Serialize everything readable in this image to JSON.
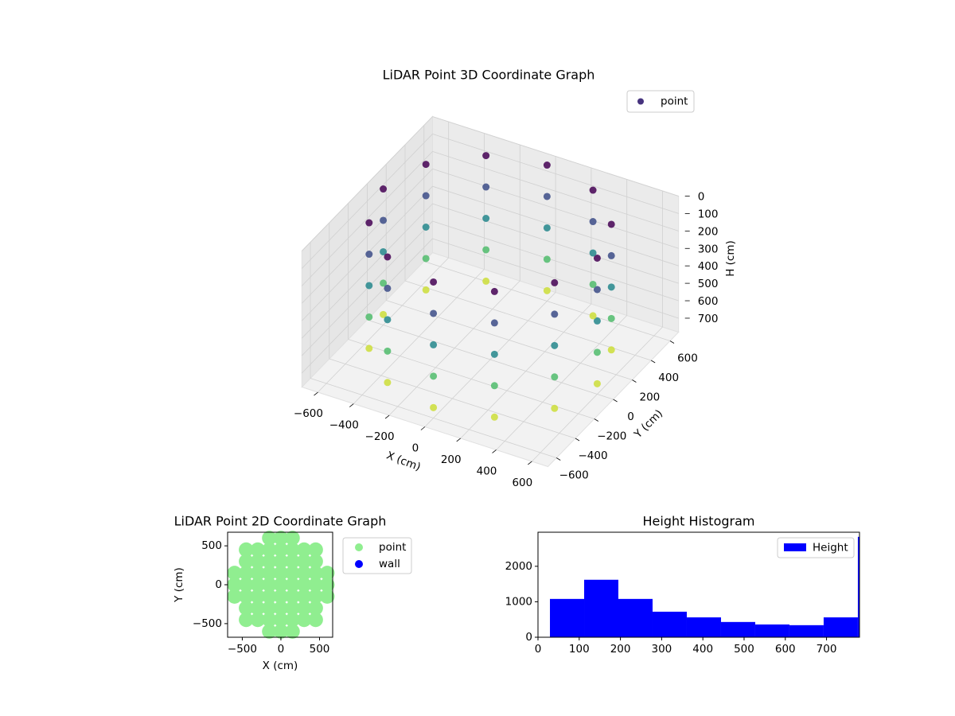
{
  "chart_data": [
    {
      "type": "scatter3d",
      "title": "LiDAR Point 3D Coordinate Graph",
      "xlabel": "X (cm)",
      "ylabel": "Y (cm)",
      "zlabel": "H (cm)",
      "xlim": [
        -690,
        690
      ],
      "ylim": [
        -690,
        690
      ],
      "zlim": [
        780,
        0
      ],
      "xticks": [
        {
          "value": -600,
          "label": "−600"
        },
        {
          "value": -400,
          "label": "−400"
        },
        {
          "value": -200,
          "label": "−200"
        },
        0,
        200,
        400,
        600
      ],
      "yticks": [
        {
          "value": -600,
          "label": "−600"
        },
        {
          "value": -400,
          "label": "−400"
        },
        {
          "value": -200,
          "label": "−200"
        },
        0,
        200,
        400,
        600
      ],
      "zticks": [
        0,
        100,
        200,
        300,
        400,
        500,
        600,
        700
      ],
      "grid": true,
      "cmap": "viridis",
      "legend": "upper right",
      "series": [
        {
          "name": "point",
          "color": "#46337e",
          "x": [
            600,
            600,
            600,
            600,
            600,
            520,
            520,
            520,
            520,
            520,
            300,
            300,
            300,
            300,
            300,
            0,
            0,
            0,
            0,
            0,
            -300,
            -300,
            -300,
            -300,
            -300,
            -520,
            -520,
            -520,
            -520,
            -520,
            -600,
            -600,
            -600,
            -600,
            -600,
            -520,
            -520,
            -520,
            -520,
            -520,
            -300,
            -300,
            -300,
            -300,
            -300,
            0,
            0,
            0,
            0,
            0,
            300,
            300,
            300,
            300,
            300,
            520,
            520,
            520,
            520,
            520
          ],
          "y": [
            0,
            0,
            0,
            0,
            0,
            300,
            300,
            300,
            300,
            300,
            520,
            520,
            520,
            520,
            520,
            600,
            600,
            600,
            600,
            600,
            520,
            520,
            520,
            520,
            520,
            300,
            300,
            300,
            300,
            300,
            0,
            0,
            0,
            0,
            0,
            -300,
            -300,
            -300,
            -300,
            -300,
            -520,
            -520,
            -520,
            -520,
            -520,
            -600,
            -600,
            -600,
            -600,
            -600,
            -520,
            -520,
            -520,
            -520,
            -520,
            -300,
            -300,
            -300,
            -300,
            -300
          ],
          "h": [
            0,
            180,
            360,
            540,
            720,
            0,
            180,
            360,
            540,
            720,
            0,
            180,
            360,
            540,
            720,
            0,
            180,
            360,
            540,
            720,
            0,
            180,
            360,
            540,
            720,
            0,
            180,
            360,
            540,
            720,
            0,
            180,
            360,
            540,
            720,
            0,
            180,
            360,
            540,
            720,
            0,
            180,
            360,
            540,
            720,
            0,
            180,
            360,
            540,
            720,
            0,
            180,
            360,
            540,
            720,
            0,
            180,
            360,
            540,
            720
          ]
        }
      ]
    },
    {
      "type": "scatter",
      "title": "LiDAR Point 2D Coordinate Graph",
      "xlabel": "X (cm)",
      "ylabel": "Y (cm)",
      "xlim": [
        -690,
        670
      ],
      "ylim": [
        -675,
        675
      ],
      "xticks": [
        {
          "value": -500,
          "label": "−500"
        },
        0,
        500
      ],
      "yticks": [
        {
          "value": -500,
          "label": "−500"
        },
        0,
        500
      ],
      "legend": "outside right",
      "series": [
        {
          "name": "point",
          "color": "#90ee90",
          "x": [
            -600,
            -600,
            -600,
            -450,
            -450,
            -450,
            -450,
            -450,
            -450,
            -450,
            -300,
            -300,
            -300,
            -300,
            -300,
            -300,
            -300,
            -150,
            -150,
            -150,
            -150,
            -150,
            -150,
            -150,
            -150,
            -150,
            0,
            0,
            0,
            0,
            0,
            0,
            0,
            0,
            0,
            150,
            150,
            150,
            150,
            150,
            150,
            150,
            150,
            150,
            300,
            300,
            300,
            300,
            300,
            300,
            300,
            450,
            450,
            450,
            450,
            450,
            450,
            450,
            600,
            600,
            600
          ],
          "y": [
            -150,
            0,
            150,
            -450,
            -300,
            -150,
            0,
            150,
            300,
            450,
            -450,
            -300,
            -150,
            0,
            150,
            300,
            450,
            -600,
            -450,
            -300,
            -150,
            0,
            150,
            300,
            450,
            600,
            -600,
            -450,
            -300,
            -150,
            0,
            150,
            300,
            450,
            600,
            -600,
            -450,
            -300,
            -150,
            0,
            150,
            300,
            450,
            600,
            -450,
            -300,
            -150,
            0,
            150,
            300,
            450,
            -450,
            -300,
            -150,
            0,
            150,
            300,
            450,
            -150,
            0,
            150
          ]
        },
        {
          "name": "wall",
          "color": "#0000ff",
          "x": [],
          "y": []
        }
      ]
    },
    {
      "type": "histogram",
      "title": "Height Histogram",
      "xlim": [
        0,
        780
      ],
      "ylim": [
        0,
        2960
      ],
      "xticks": [
        0,
        100,
        200,
        300,
        400,
        500,
        600,
        700
      ],
      "yticks": [
        0,
        1000,
        2000
      ],
      "legend": "upper right",
      "bins": [
        29,
        112,
        195,
        278,
        361,
        444,
        527,
        610,
        693,
        776,
        859
      ],
      "series": [
        {
          "name": "Height",
          "color": "#0000ff",
          "values": [
            1080,
            1620,
            1080,
            720,
            560,
            430,
            360,
            340,
            560,
            2830
          ]
        }
      ]
    }
  ]
}
